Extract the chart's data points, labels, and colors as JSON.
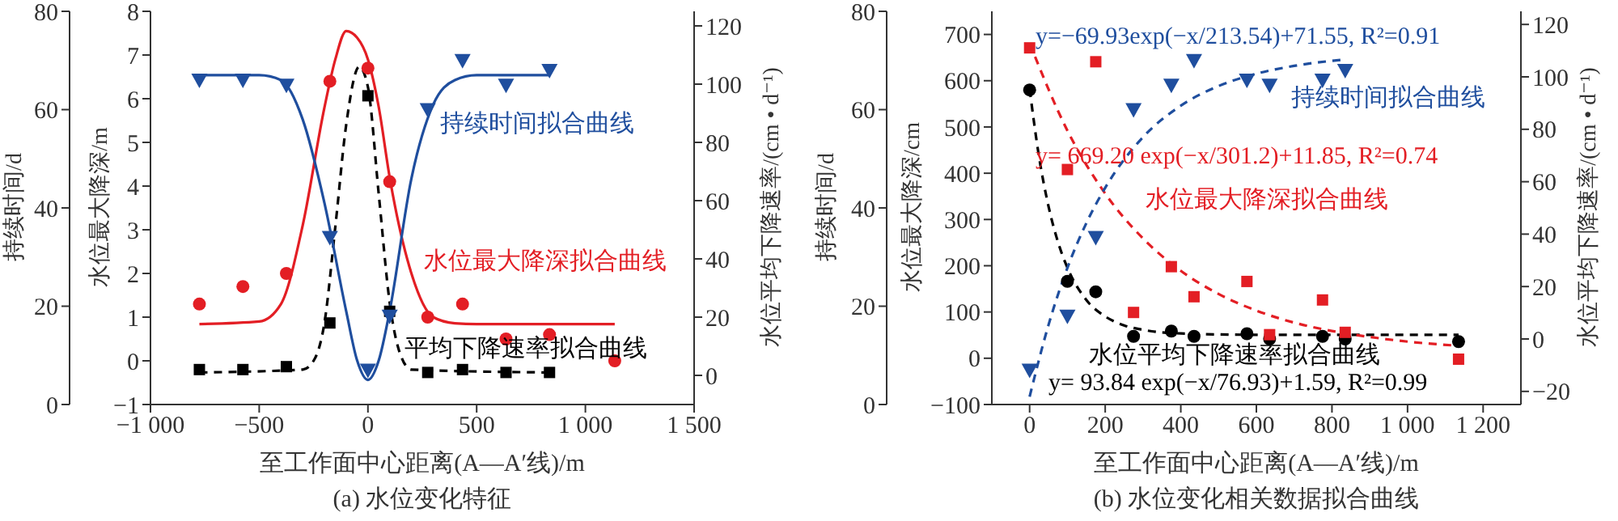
{
  "chart_data": [
    {
      "type": "scatter",
      "title": "(a) 水位变化特征",
      "xlabel": "至工作面中心距离(A—A′线)/m",
      "ylabel": "水位最大降深/m",
      "y2label": "水位平均下降速率/(cm • d⁻¹)",
      "y3label": "持续时间/d",
      "xlim": [
        -1000,
        1500
      ],
      "xticks": [
        {
          "value": -1000,
          "label": "−1 000"
        },
        {
          "value": -500,
          "label": "−500"
        },
        0,
        500,
        {
          "value": 1000,
          "label": "1 000"
        },
        {
          "value": 1500,
          "label": "1 500"
        }
      ],
      "ylim": [
        -1,
        8
      ],
      "yticks": [
        {
          "value": -1,
          "label": "−1"
        },
        0,
        1,
        2,
        3,
        4,
        5,
        6,
        7,
        8
      ],
      "y2lim": [
        -10,
        125
      ],
      "y2ticks": [
        0,
        20,
        40,
        60,
        80,
        100,
        120
      ],
      "y3lim": [
        0,
        80
      ],
      "y3ticks": [
        0,
        20,
        40,
        60,
        80
      ],
      "annotations": [
        "持续时间拟合曲线",
        "水位最大降深拟合曲线",
        "平均下降速率拟合曲线"
      ],
      "series": [
        {
          "type": "scatter",
          "axis": "y3",
          "marker": "triangle",
          "color": "#1f4e9e",
          "x": [
            -775,
            -575,
            -375,
            -175,
            0,
            100,
            275,
            435,
            635,
            835
          ],
          "values": [
            66,
            66,
            65,
            34,
            7,
            18,
            60,
            70,
            65,
            68
          ]
        },
        {
          "type": "line",
          "axis": "y3",
          "line_style": "solid",
          "color": "#1f4e9e",
          "x": [
            -775,
            -500,
            -400,
            -300,
            -200,
            -100,
            -50,
            0,
            50,
            100,
            200,
            300,
            400,
            500,
            835
          ],
          "values": [
            67,
            67,
            66,
            58,
            41,
            19,
            9,
            5,
            9,
            19,
            46,
            61,
            66,
            67,
            67
          ]
        },
        {
          "type": "scatter",
          "axis": "y",
          "marker": "circle",
          "color": "#e31e24",
          "x": [
            -775,
            -575,
            -375,
            -175,
            0,
            100,
            275,
            435,
            635,
            835,
            1135
          ],
          "values": [
            1.3,
            1.7,
            2.0,
            6.4,
            6.7,
            4.1,
            1.0,
            1.3,
            0.5,
            0.6,
            0.0
          ]
        },
        {
          "type": "line",
          "axis": "y",
          "line_style": "solid",
          "color": "#e31e24",
          "x": [
            -775,
            -500,
            -400,
            -300,
            -200,
            -150,
            -100,
            -50,
            0,
            50,
            100,
            200,
            300,
            400,
            500,
            1135
          ],
          "values": [
            0.84,
            0.9,
            1.3,
            3.1,
            5.8,
            6.9,
            7.55,
            7.4,
            6.9,
            5.8,
            4.2,
            2.0,
            1.0,
            0.86,
            0.84,
            0.84
          ]
        },
        {
          "type": "scatter",
          "axis": "y2",
          "marker": "square",
          "color": "#000000",
          "x": [
            -775,
            -575,
            -375,
            -175,
            0,
            100,
            275,
            435,
            635,
            835
          ],
          "values": [
            2,
            2,
            3,
            18,
            96,
            22,
            1,
            2,
            1,
            1
          ]
        },
        {
          "type": "line",
          "axis": "y2",
          "line_style": "dashed",
          "color": "#000000",
          "x": [
            -775,
            -300,
            -250,
            -200,
            -150,
            -100,
            -40,
            0,
            50,
            100,
            150,
            200,
            835
          ],
          "values": [
            1,
            2,
            5,
            18,
            51,
            86,
            106,
            99,
            62,
            25,
            7,
            2,
            1
          ]
        }
      ]
    },
    {
      "type": "scatter",
      "title": "(b) 水位变化相关数据拟合曲线",
      "xlabel": "至工作面中心距离(A—A′线)/m",
      "ylabel": "水位最大降深/cm",
      "y2label": "水位平均下降速率/(cm • d⁻¹)",
      "y3label": "持续时间/d",
      "xlim": [
        -100,
        1300
      ],
      "xticks": [
        0,
        200,
        400,
        600,
        800,
        {
          "value": 1000,
          "label": "1 000"
        },
        {
          "value": 1200,
          "label": "1 200"
        }
      ],
      "ylim": [
        -100,
        750
      ],
      "yticks": [
        {
          "value": -100,
          "label": "−100"
        },
        0,
        100,
        200,
        300,
        400,
        500,
        600,
        700
      ],
      "y2lim": [
        -25,
        125
      ],
      "y2ticks": [
        {
          "value": -20,
          "label": "−20"
        },
        0,
        20,
        40,
        60,
        80,
        100,
        120
      ],
      "y3lim": [
        0,
        80
      ],
      "y3ticks": [
        0,
        20,
        40,
        60,
        80
      ],
      "annotations": [
        "y=−69.93exp(−x/213.54)+71.55, R²=0.91",
        "持续时间拟合曲线",
        "y= 669.20 exp(−x/301.2)+11.85, R²=0.74",
        "水位最大降深拟合曲线",
        "水位平均下降速率拟合曲线",
        "y= 93.84 exp(−x/76.93)+1.59, R²=0.99"
      ],
      "series": [
        {
          "type": "scatter",
          "axis": "y3",
          "marker": "triangle",
          "color": "#1f4e9e",
          "x": [
            0,
            100,
            175,
            275,
            375,
            435,
            575,
            635,
            775,
            835
          ],
          "values": [
            7,
            18,
            34,
            60,
            65,
            70,
            66,
            65,
            66,
            68
          ]
        },
        {
          "type": "line",
          "axis": "y3",
          "line_style": "dashed",
          "color": "#1f4e9e",
          "x": [
            0,
            50,
            100,
            150,
            200,
            300,
            400,
            500,
            600,
            700,
            835
          ],
          "values": [
            1.6,
            16.2,
            27.8,
            36.9,
            44.1,
            54.4,
            60.8,
            64.8,
            67.3,
            68.9,
            70.2
          ]
        },
        {
          "type": "scatter",
          "axis": "y",
          "marker": "square",
          "color": "#e31e24",
          "x": [
            0,
            100,
            175,
            275,
            375,
            435,
            575,
            635,
            775,
            835,
            1135
          ],
          "values": [
            671,
            408,
            641,
            99,
            198,
            133,
            166,
            51,
            126,
            56,
            -2
          ]
        },
        {
          "type": "line",
          "axis": "y",
          "line_style": "dashed",
          "color": "#e31e24",
          "x": [
            0,
            100,
            200,
            300,
            400,
            500,
            600,
            700,
            800,
            900,
            1000,
            1135
          ],
          "values": [
            681,
            492,
            356,
            259,
            189,
            139,
            103,
            77,
            59,
            46,
            36,
            27
          ]
        },
        {
          "type": "scatter",
          "axis": "y2",
          "marker": "circle",
          "color": "#000000",
          "x": [
            0,
            100,
            175,
            275,
            375,
            435,
            575,
            635,
            775,
            835,
            1135
          ],
          "values": [
            95,
            22,
            18,
            1,
            3,
            1,
            2,
            0,
            1,
            0,
            -1
          ]
        },
        {
          "type": "line",
          "axis": "y2",
          "line_style": "dashed",
          "color": "#000000",
          "x": [
            0,
            25,
            50,
            75,
            100,
            150,
            200,
            250,
            300,
            400,
            600,
            1135
          ],
          "values": [
            95.4,
            69.4,
            50.6,
            37,
            27.2,
            14.9,
            8.6,
            5.2,
            3.5,
            2.1,
            1.6,
            1.6
          ]
        }
      ]
    }
  ]
}
